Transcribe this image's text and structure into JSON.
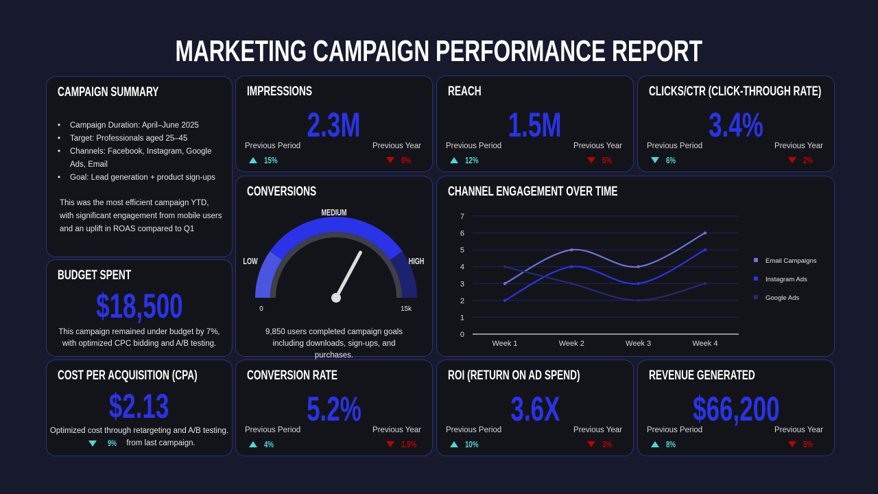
{
  "title": "MARKETING CAMPAIGN PERFORMANCE REPORT",
  "colors": {
    "accent": "#2a33e8",
    "up": "#4fd6d6",
    "down": "#c00000",
    "background": "#171a2c",
    "card": "#131419"
  },
  "summary": {
    "title": "CAMPAIGN SUMMARY",
    "bullets": [
      "Campaign Duration: April–June 2025",
      "Target: Professionals aged 25–45",
      "Channels: Facebook, Instagram, Google Ads, Email",
      "Goal: Lead generation + product sign-ups"
    ],
    "note": "This was the most efficient campaign YTD, with significant engagement from mobile users and an uplift in ROAS compared to Q1"
  },
  "budget": {
    "title": "BUDGET SPENT",
    "value": "$18,500",
    "note": "This campaign remained under budget by 7%, with optimized CPC bidding and A/B testing."
  },
  "cpa": {
    "title": "COST PER ACQUISITION (CPA)",
    "value": "$2.13",
    "note": "Optimized cost through retargeting and A/B testing.",
    "change": "9%",
    "change_dir": "down",
    "change_suffix": "from last campaign."
  },
  "kpis": {
    "impressions": {
      "title": "IMPRESSIONS",
      "value": "2.3M",
      "prev_period_label": "Previous Period",
      "prev_period": "15%",
      "prev_period_dir": "up",
      "prev_year_label": "Previous Year",
      "prev_year": "8%",
      "prev_year_dir": "down"
    },
    "reach": {
      "title": "REACH",
      "value": "1.5M",
      "prev_period_label": "Previous Period",
      "prev_period": "12%",
      "prev_period_dir": "up",
      "prev_year_label": "Previous Year",
      "prev_year": "5%",
      "prev_year_dir": "down"
    },
    "clicks": {
      "title": "CLICKS/CTR (CLICK-THROUGH RATE)",
      "value": "3.4%",
      "prev_period_label": "Previous Period",
      "prev_period": "6%",
      "prev_period_dir": "down",
      "prev_year_label": "Previous Year",
      "prev_year": "2%",
      "prev_year_dir": "down"
    },
    "conv_rate": {
      "title": "CONVERSION RATE",
      "value": "5.2%",
      "prev_period_label": "Previous Period",
      "prev_period": "4%",
      "prev_period_dir": "up",
      "prev_year_label": "Previous Year",
      "prev_year": "1.5%",
      "prev_year_dir": "down"
    },
    "roi": {
      "title": "ROI (RETURN ON AD SPEND)",
      "value": "3.6X",
      "prev_period_label": "Previous Period",
      "prev_period": "10%",
      "prev_period_dir": "up",
      "prev_year_label": "Previous Year",
      "prev_year": "3%",
      "prev_year_dir": "down"
    },
    "revenue": {
      "title": "REVENUE GENERATED",
      "value": "$66,200",
      "prev_period_label": "Previous Period",
      "prev_period": "8%",
      "prev_period_dir": "up",
      "prev_year_label": "Previous Year",
      "prev_year": "5%",
      "prev_year_dir": "down"
    }
  },
  "conversions": {
    "title": "CONVERSIONS",
    "low": "LOW",
    "medium": "MEDIUM",
    "high": "HIGH",
    "min": "0",
    "max": "15k",
    "value": 9850,
    "max_value": 15000,
    "note": "9,850 users completed campaign goals including downloads, sign-ups, and purchases."
  },
  "chart_data": {
    "type": "line",
    "title": "CHANNEL ENGAGEMENT OVER TIME",
    "categories": [
      "Week 1",
      "Week 2",
      "Week 3",
      "Week 4"
    ],
    "ylim": [
      0,
      7
    ],
    "yticks": [
      0,
      1,
      2,
      3,
      4,
      5,
      6,
      7
    ],
    "grid": true,
    "legend": "right",
    "series": [
      {
        "name": "Email Campaigns",
        "color": "#6b73e0",
        "values": [
          3,
          5,
          4,
          6
        ]
      },
      {
        "name": "Instagram Ads",
        "color": "#2a33e8",
        "values": [
          2,
          4,
          3,
          5
        ]
      },
      {
        "name": "Google Ads",
        "color": "#232a78",
        "values": [
          4,
          3,
          2,
          3
        ]
      }
    ]
  }
}
